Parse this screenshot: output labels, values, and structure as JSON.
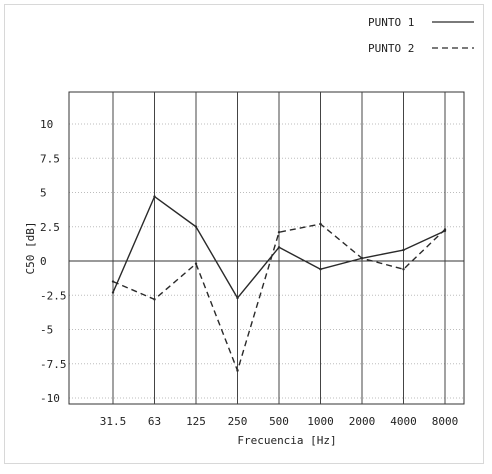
{
  "chart_data": {
    "type": "line",
    "categories": [
      "31.5",
      "63",
      "125",
      "250",
      "500",
      "1000",
      "2000",
      "4000",
      "8000"
    ],
    "series": [
      {
        "name": "PUNTO 1",
        "style": "solid",
        "values": [
          -2.3,
          4.7,
          2.5,
          -2.7,
          1.0,
          -0.6,
          0.2,
          0.8,
          2.2
        ]
      },
      {
        "name": "PUNTO 2",
        "style": "dashed",
        "values": [
          -1.5,
          -2.8,
          -0.2,
          -8.0,
          2.1,
          2.7,
          0.2,
          -0.6,
          2.3
        ]
      }
    ],
    "xlabel": "Frecuencia [Hz]",
    "ylabel": "C50 [dB]",
    "yticks": [
      "10",
      "7.5",
      "5",
      "2.5",
      "0",
      "-2.5",
      "-5",
      "-7.5",
      "-10"
    ],
    "ylim": [
      -10,
      10
    ],
    "grid": true,
    "legend_position": "top-right",
    "colors": {
      "line": "#2a2a2a",
      "grid": "#bdbdbd",
      "axis": "#333333"
    }
  }
}
